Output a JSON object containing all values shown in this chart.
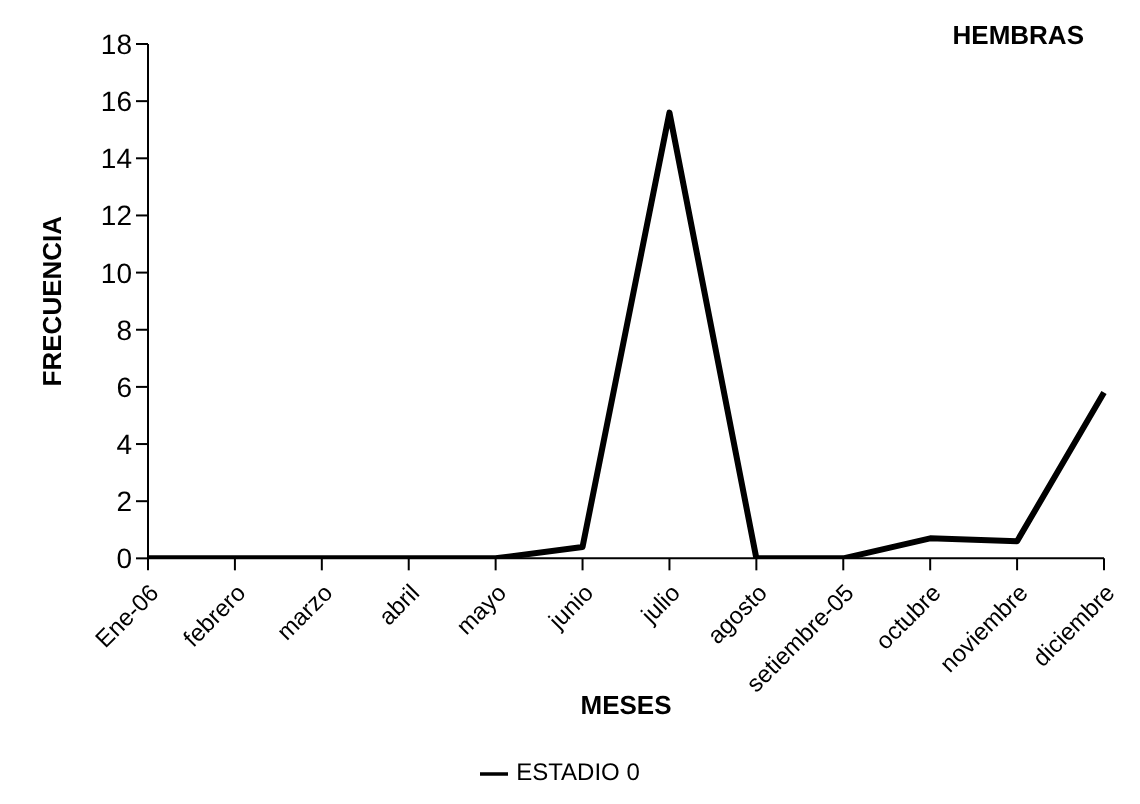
{
  "chart_data": {
    "type": "line",
    "title": "HEMBRAS",
    "xlabel": "MESES",
    "ylabel": "FRECUENCIA",
    "categories": [
      "Ene-06",
      "febrero",
      "marzo",
      "abril",
      "mayo",
      "junio",
      "julio",
      "agosto",
      "setiembre-05",
      "octubre",
      "noviembre",
      "diciembre"
    ],
    "series": [
      {
        "name": "ESTADIO 0",
        "color": "#000000",
        "values": [
          0,
          0,
          0,
          0,
          0,
          0.4,
          15.6,
          0,
          0,
          0.7,
          0.6,
          5.8
        ]
      }
    ],
    "ylim": [
      0,
      18
    ],
    "yticks": [
      0,
      2,
      4,
      6,
      8,
      10,
      12,
      14,
      16,
      18
    ],
    "grid": false,
    "legend": "bottom",
    "marker": "none",
    "line_style": "solid"
  }
}
